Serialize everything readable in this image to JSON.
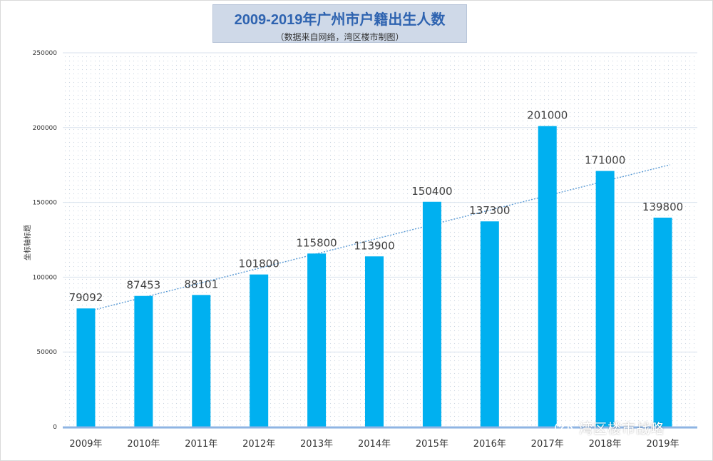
{
  "header": {
    "title": "2009-2019年广州市户籍出生人数",
    "subtitle": "（数据来自网络，湾区楼市制图）"
  },
  "watermark": {
    "text": "湾区楼市战略",
    "icon": "wechat-icon"
  },
  "colors": {
    "bar": "#00b0f0",
    "trendline": "#5b9bd5",
    "title": "#2e63b0",
    "title_bg": "#cfd9e8",
    "gridline": "#d9e2ee",
    "label": "#404040"
  },
  "chart_data": {
    "type": "bar",
    "title": "2009-2019年广州市户籍出生人数",
    "subtitle": "（数据来自网络，湾区楼市制图）",
    "xlabel": "",
    "ylabel": "坐标轴标题",
    "categories": [
      "2009年",
      "2010年",
      "2011年",
      "2012年",
      "2013年",
      "2014年",
      "2015年",
      "2016年",
      "2017年",
      "2018年",
      "2019年"
    ],
    "values": [
      79092,
      87453,
      88101,
      101800,
      115800,
      113900,
      150400,
      137300,
      201000,
      171000,
      139800
    ],
    "data_labels": [
      "79092",
      "87453",
      "88101",
      "101800",
      "115800",
      "113900",
      "150400",
      "137300",
      "201000",
      "171000",
      "139800"
    ],
    "y_ticks": [
      0,
      50000,
      100000,
      150000,
      200000,
      250000
    ],
    "y_tick_labels": [
      "0",
      "50000",
      "100000",
      "150000",
      "200000",
      "250000"
    ],
    "ylim": [
      0,
      250000
    ],
    "trendline": {
      "type": "linear",
      "style": "dotted"
    },
    "grid": true,
    "legend": "none"
  }
}
